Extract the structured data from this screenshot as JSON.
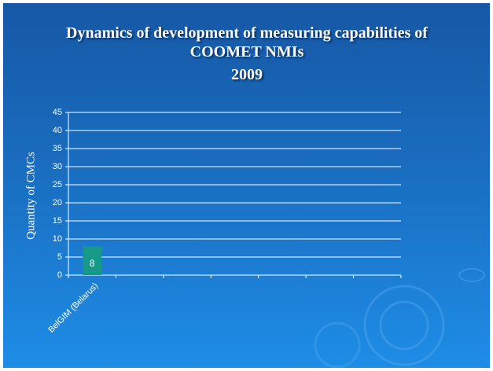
{
  "chart_data": {
    "type": "bar",
    "title": "Dynamics of development of measuring capabilities of COOMET NMIs",
    "subtitle": "2009",
    "y_label": "Quantity   of CMCs",
    "categories": [
      "BelGIM (Belarus)",
      null,
      null,
      null,
      null,
      null,
      null
    ],
    "values": [
      8,
      null,
      null,
      null,
      null,
      null,
      null
    ],
    "color": "#17998a",
    "ylim": [
      0,
      45
    ],
    "yticks": [
      0,
      5,
      10,
      15,
      20,
      25,
      30,
      35,
      40,
      45
    ],
    "grid": true
  }
}
